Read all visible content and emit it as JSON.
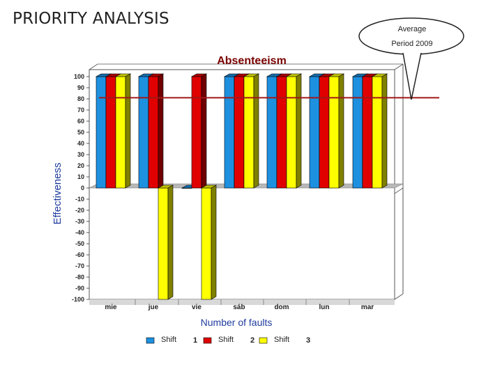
{
  "slide": {
    "title": "PRIORITY ANALYSIS"
  },
  "callout": {
    "line1": "Average",
    "line2": "Period 2009"
  },
  "chart_data": {
    "type": "bar",
    "title": "Absenteeism",
    "xlabel": "Number of faults",
    "ylabel": "Effectiveness",
    "ylim": [
      -100,
      100
    ],
    "yticks": [
      100,
      90,
      80,
      70,
      60,
      50,
      40,
      30,
      20,
      10,
      0,
      -10,
      -20,
      -30,
      -40,
      -50,
      -60,
      -70,
      -80,
      -90,
      -100
    ],
    "categories": [
      "mie",
      "jue",
      "vie",
      "sáb",
      "dom",
      "lun",
      "mar"
    ],
    "series": [
      {
        "name": "Shift 1",
        "color": "#1e90e0",
        "values": [
          100,
          100,
          0,
          100,
          100,
          100,
          100
        ]
      },
      {
        "name": "Shift 2",
        "color": "#e00000",
        "values": [
          100,
          100,
          100,
          100,
          100,
          100,
          100
        ]
      },
      {
        "name": "Shift 3",
        "color": "#ffff00",
        "values": [
          100,
          -100,
          -100,
          100,
          100,
          100,
          100
        ]
      }
    ],
    "reference_line": {
      "value": 81,
      "color": "#a01818"
    },
    "legend": {
      "placement": "bottom",
      "entries": [
        {
          "label": "Shift",
          "number": "1",
          "color": "#1e90e0"
        },
        {
          "label": "Shift",
          "number": "2",
          "color": "#e00000"
        },
        {
          "label": "Shift",
          "number": "3",
          "color": "#ffff00"
        }
      ]
    },
    "grid": false
  }
}
